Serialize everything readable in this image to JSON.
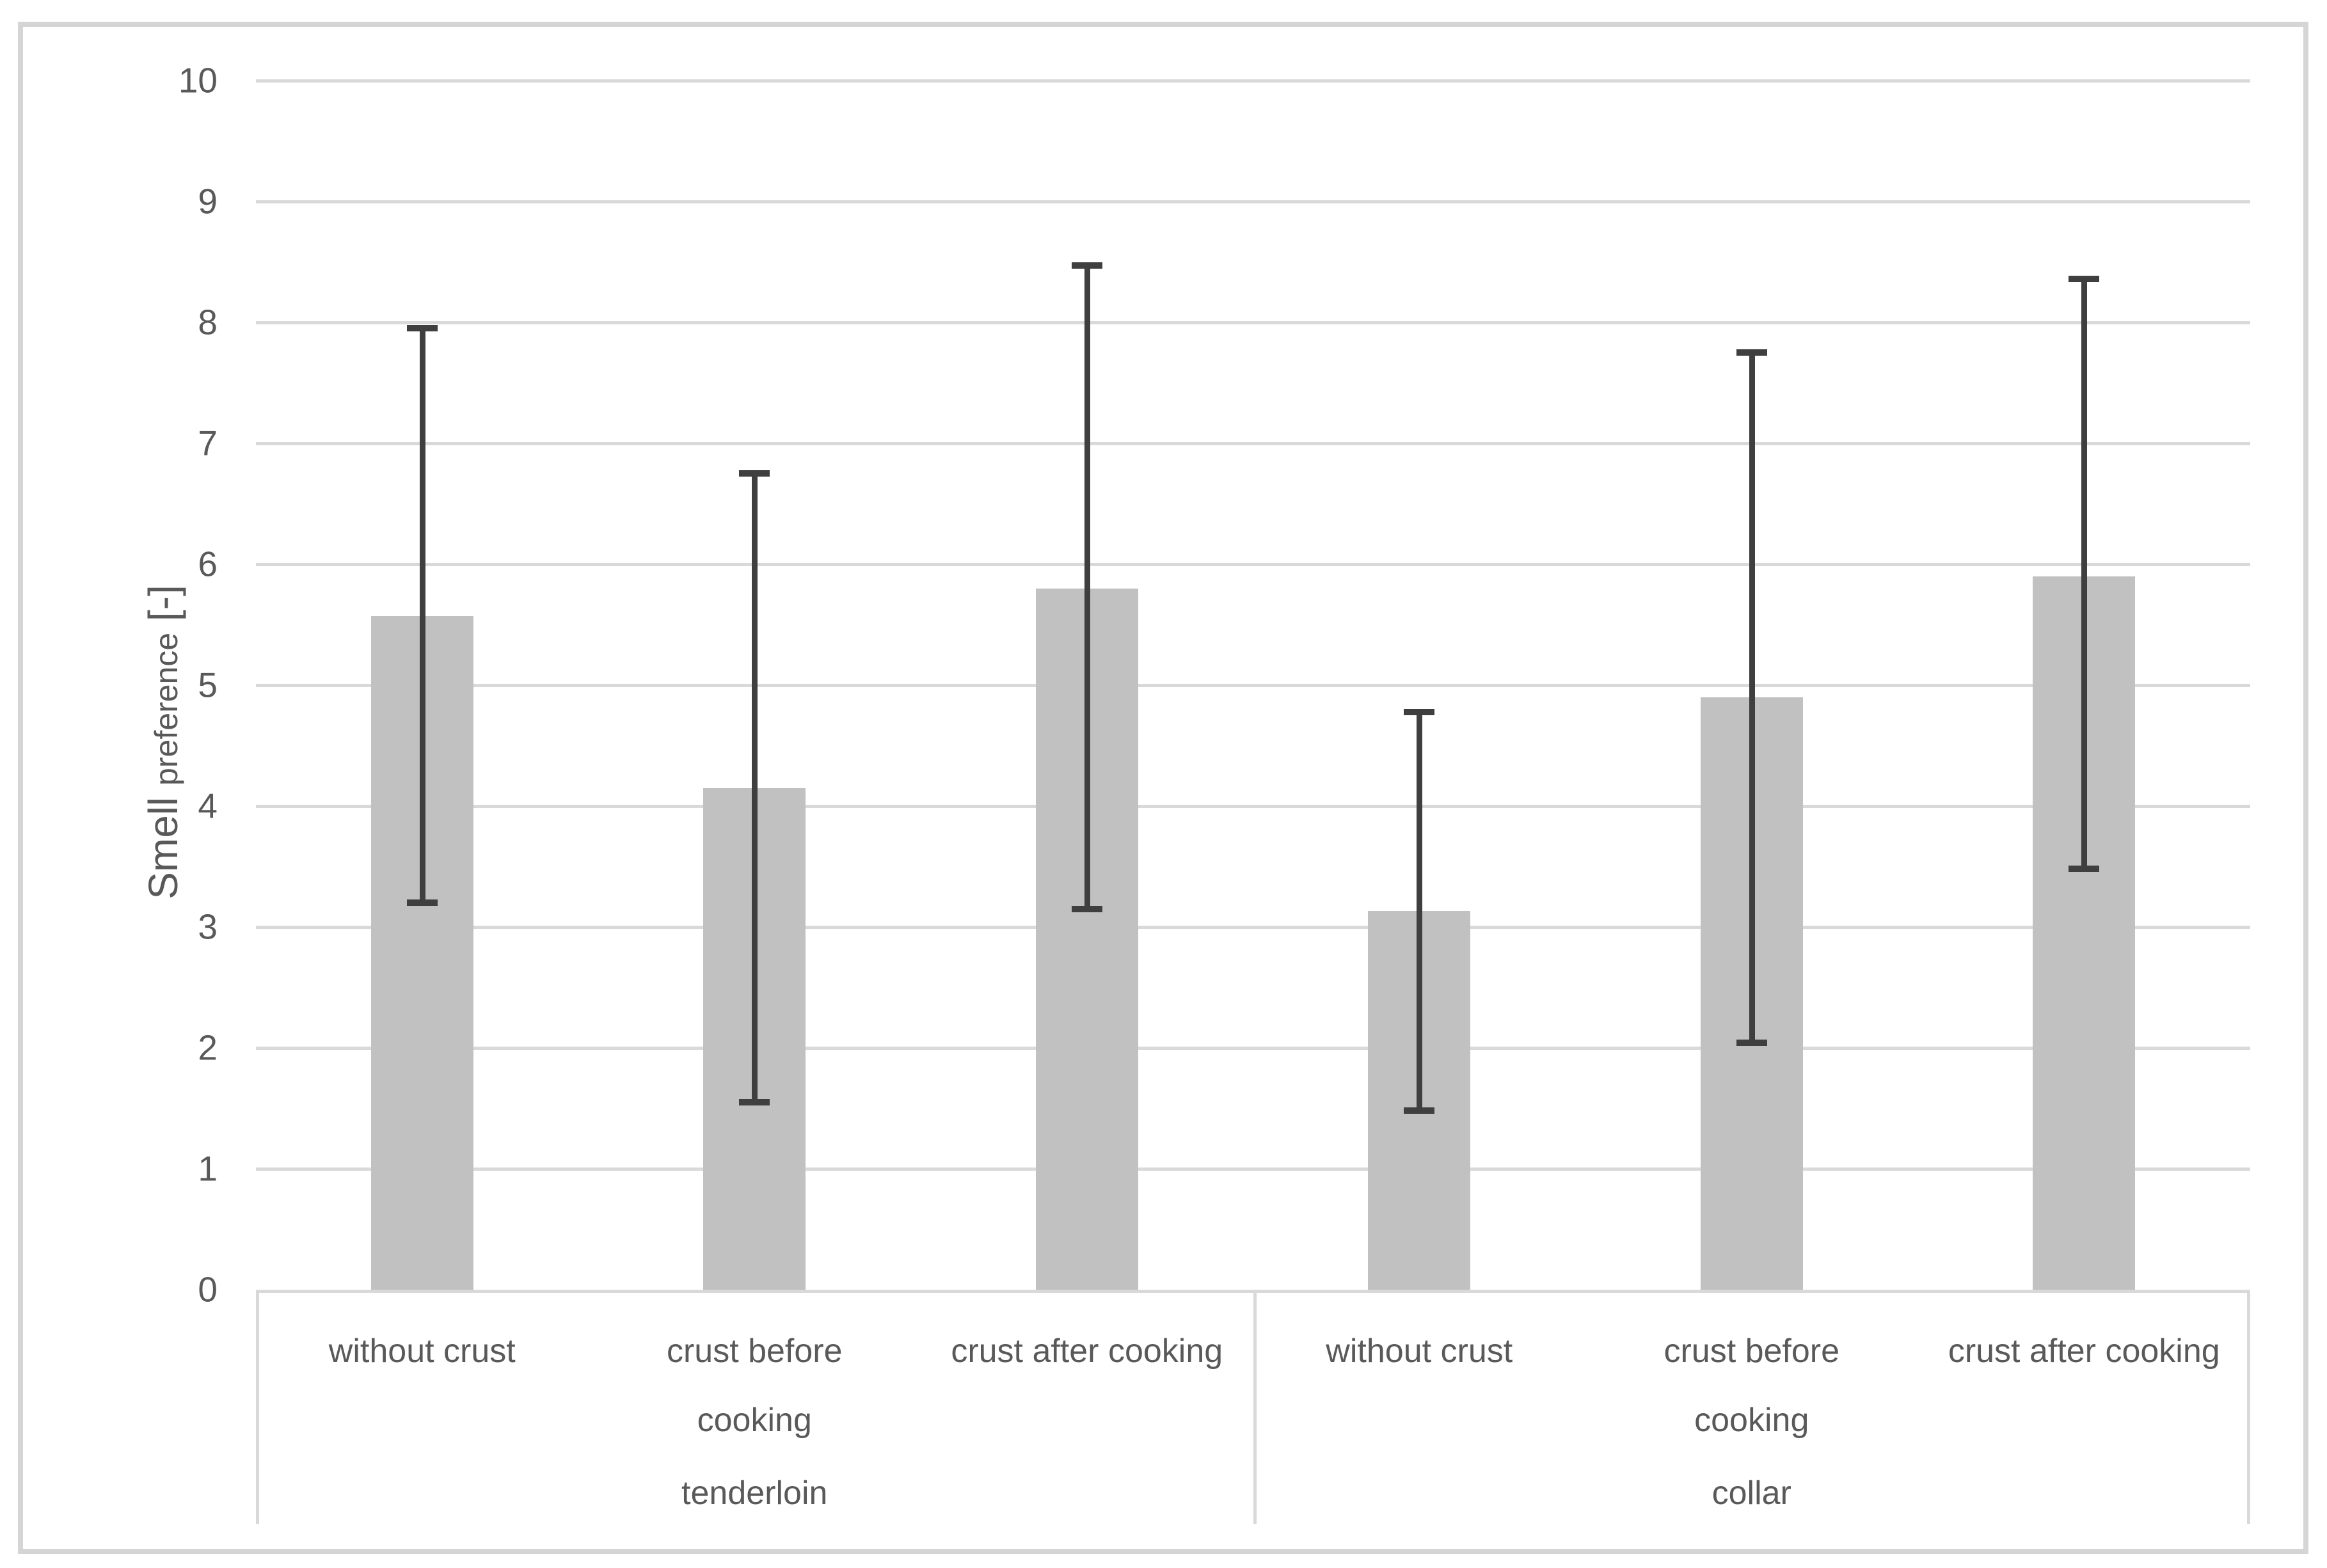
{
  "chart_data": {
    "type": "bar",
    "title": "",
    "ylabel_main": "Smell",
    "ylabel_sub": "preference",
    "ylabel_unit": "[-]",
    "ylim": [
      0,
      10
    ],
    "ytick_step": 1,
    "yticks": [
      0,
      1,
      2,
      3,
      4,
      5,
      6,
      7,
      8,
      9,
      10
    ],
    "grid": true,
    "legend_position": "none",
    "groups": [
      {
        "label": "tenderloin",
        "categories": [
          "without crust",
          "crust before cooking",
          "crust after cooking"
        ]
      },
      {
        "label": "collar",
        "categories": [
          "without crust",
          "crust before cooking",
          "crust after cooking"
        ]
      }
    ],
    "bars": [
      {
        "group": "tenderloin",
        "category": "without crust",
        "value": 5.57,
        "err_low": 3.2,
        "err_high": 7.95
      },
      {
        "group": "tenderloin",
        "category": "crust before cooking",
        "value": 4.15,
        "err_low": 1.55,
        "err_high": 6.75
      },
      {
        "group": "tenderloin",
        "category": "crust after cooking",
        "value": 5.8,
        "err_low": 3.15,
        "err_high": 8.47
      },
      {
        "group": "collar",
        "category": "without crust",
        "value": 3.13,
        "err_low": 1.48,
        "err_high": 4.78
      },
      {
        "group": "collar",
        "category": "crust before cooking",
        "value": 4.9,
        "err_low": 2.04,
        "err_high": 7.75
      },
      {
        "group": "collar",
        "category": "crust after cooking",
        "value": 5.9,
        "err_low": 3.48,
        "err_high": 8.36
      }
    ],
    "colors": {
      "bar_fill": "#c1c1c1",
      "error_bar": "#3f3f3f",
      "gridline": "#d9d9d9",
      "axis_text": "#595959",
      "frame_border": "#d5d5d5",
      "background": "#ffffff"
    }
  }
}
